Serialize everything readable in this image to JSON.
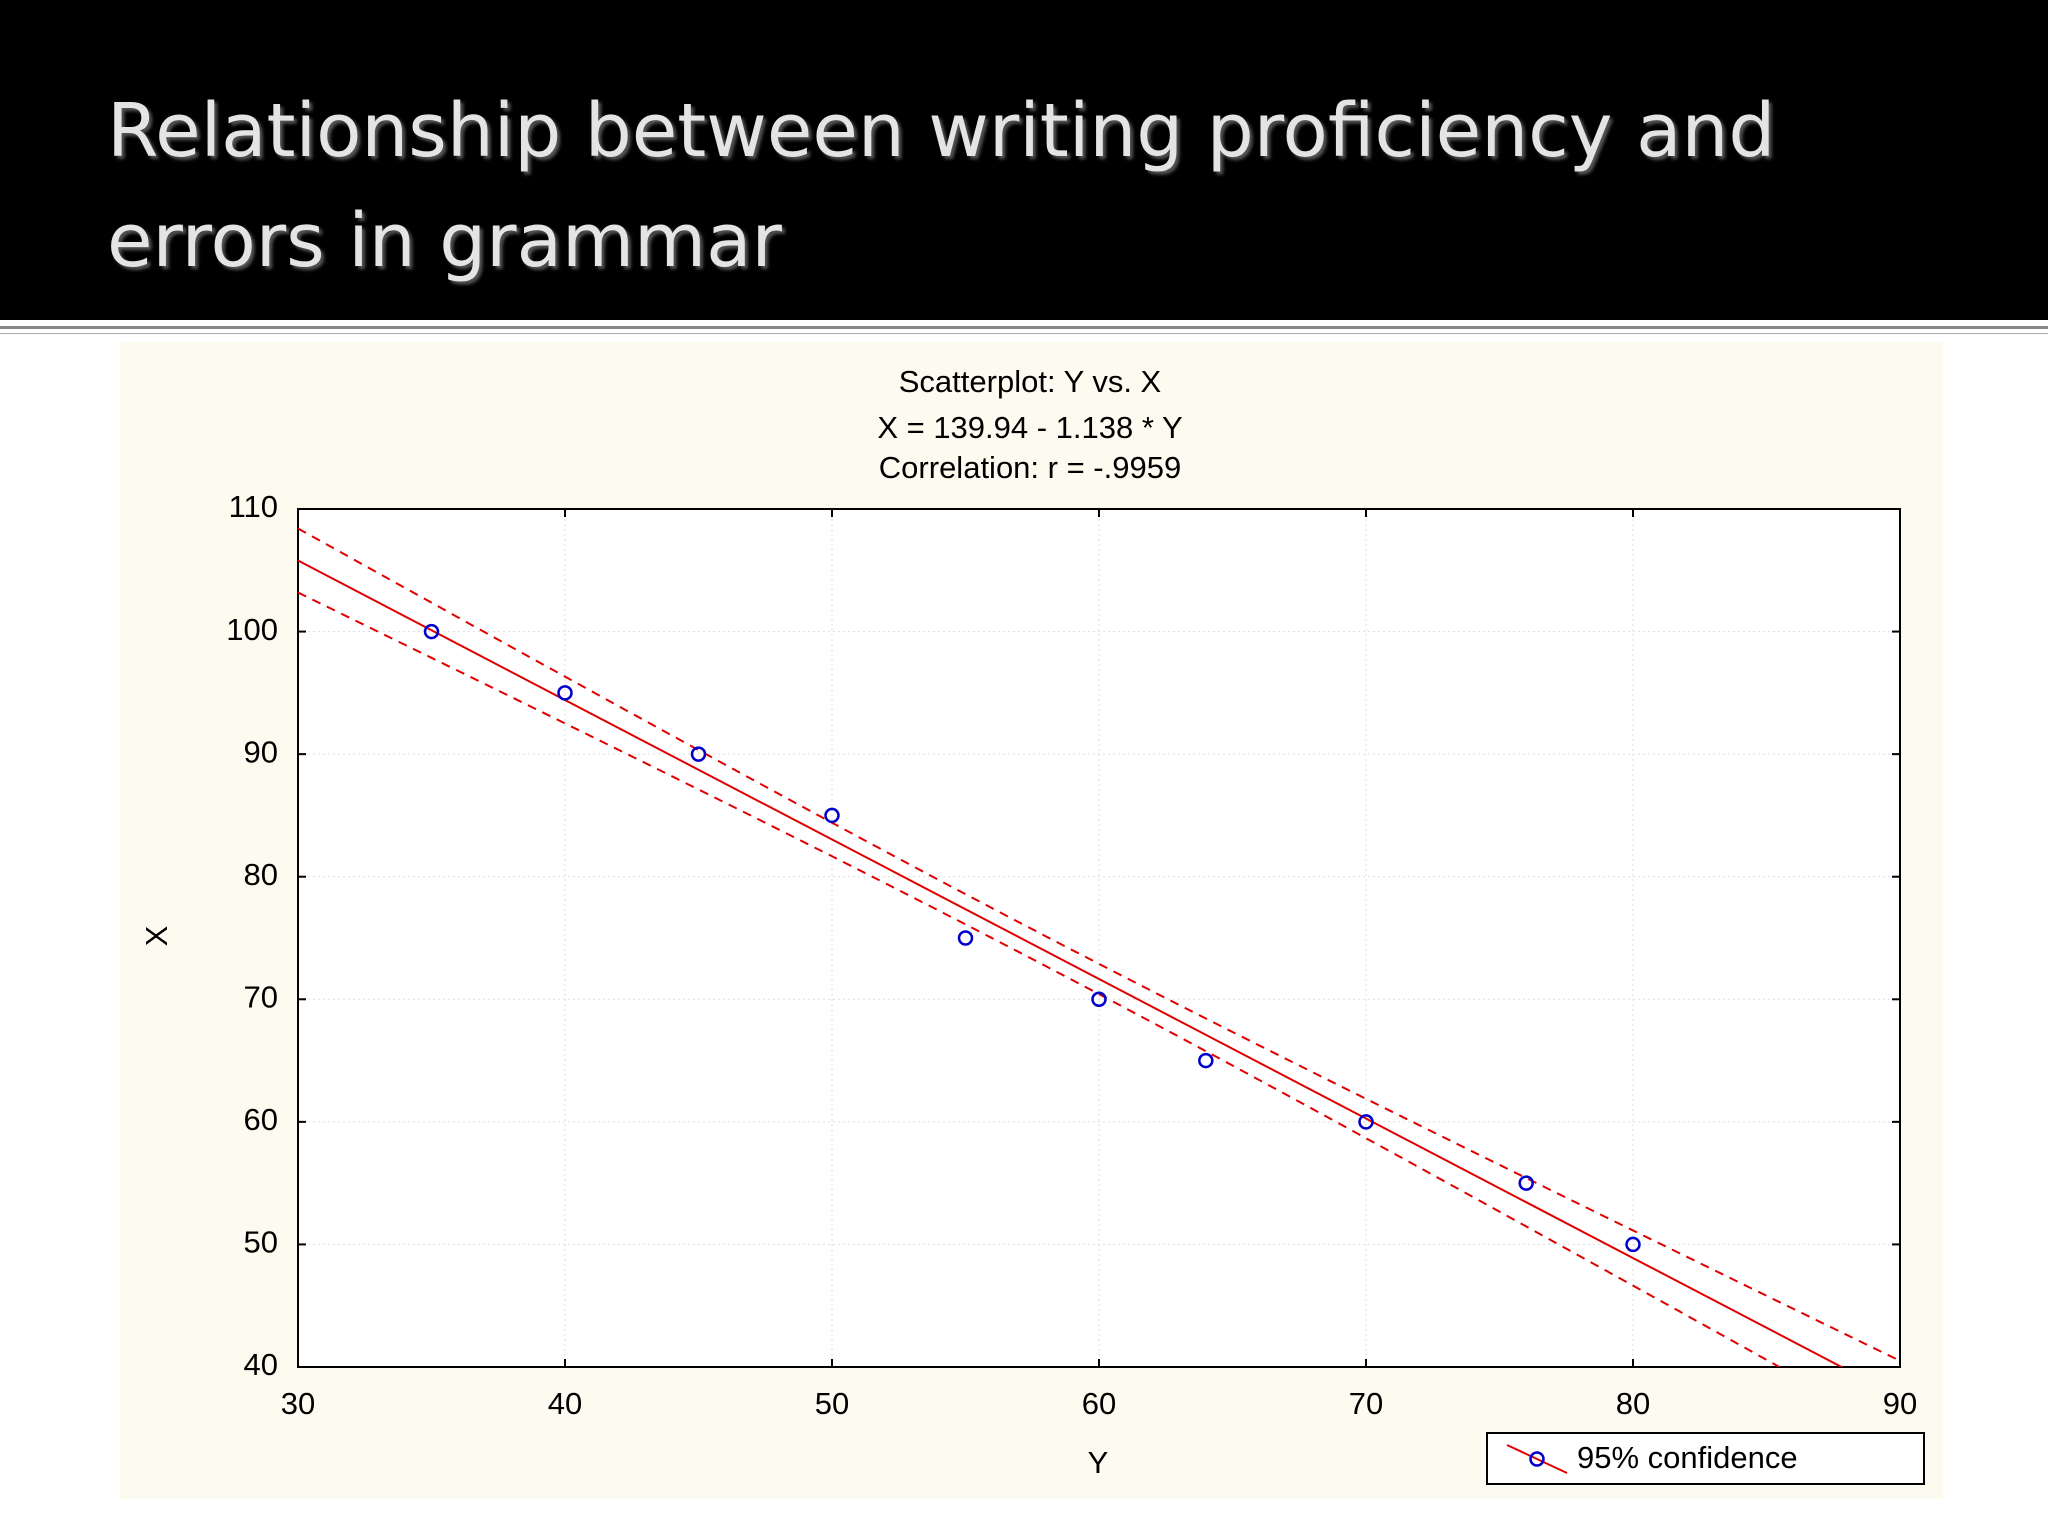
{
  "slide": {
    "title": [
      "Relationship between writing proficiency and",
      "errors in grammar"
    ]
  },
  "chart_data": {
    "type": "scatter",
    "title": "Scatterplot: Y vs. X",
    "subtitle": [
      "X = 139.94 - 1.138 * Y",
      "Correlation: r = -.9959"
    ],
    "x_label": "Y",
    "y_label": "X",
    "series": [
      {
        "name": "95% confidence",
        "color": "#0000cc",
        "line_color": "#e00000",
        "x": [
          35,
          40,
          45,
          50,
          55,
          60,
          64,
          70,
          76,
          80
        ],
        "values": [
          100,
          95,
          90,
          85,
          75,
          70,
          65,
          60,
          55,
          50
        ]
      }
    ],
    "xlim": [
      30,
      90
    ],
    "xticks": [
      30,
      40,
      50,
      60,
      70,
      80,
      90
    ],
    "ylim": [
      40,
      110
    ],
    "yticks": [
      40,
      50,
      60,
      70,
      80,
      90,
      100,
      110
    ],
    "grid": true,
    "legend": "bottom-right"
  }
}
